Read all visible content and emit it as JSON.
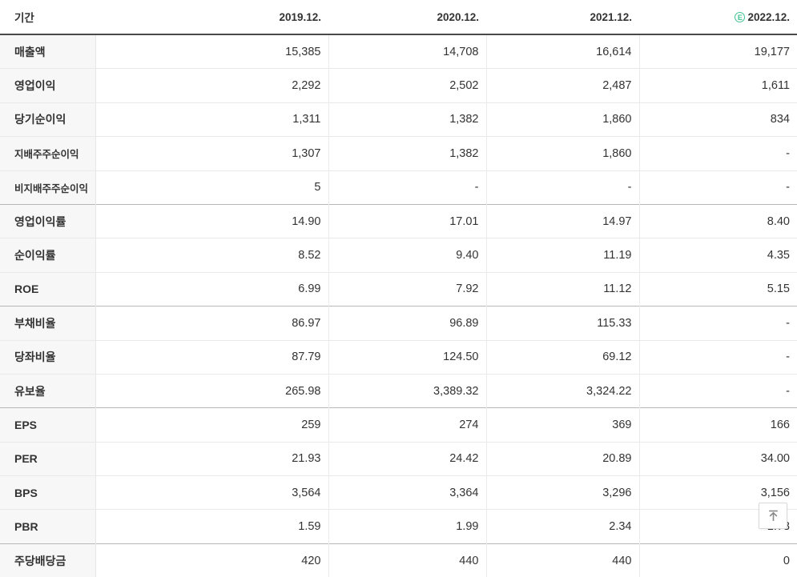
{
  "colors": {
    "estimate_green": "#41c392",
    "header_border": "#4a4a4a",
    "group_border": "#b7b7b7",
    "row_border": "#e9e9e9",
    "label_bg": "#f7f7f7",
    "text": "#333333"
  },
  "table": {
    "header": {
      "period_label": "기간",
      "estimate_badge": "E",
      "columns": [
        {
          "label": "2019.12.",
          "estimate": false
        },
        {
          "label": "2020.12.",
          "estimate": false
        },
        {
          "label": "2021.12.",
          "estimate": false
        },
        {
          "label": "2022.12.",
          "estimate": true
        }
      ]
    },
    "rows": [
      {
        "label": "매출액",
        "sub": false,
        "group_start": false,
        "values": [
          "15,385",
          "14,708",
          "16,614",
          "19,177"
        ]
      },
      {
        "label": "영업이익",
        "sub": false,
        "group_start": false,
        "values": [
          "2,292",
          "2,502",
          "2,487",
          "1,611"
        ]
      },
      {
        "label": "당기순이익",
        "sub": false,
        "group_start": false,
        "values": [
          "1,311",
          "1,382",
          "1,860",
          "834"
        ]
      },
      {
        "label": "지배주주순이익",
        "sub": true,
        "group_start": false,
        "values": [
          "1,307",
          "1,382",
          "1,860",
          "-"
        ]
      },
      {
        "label": "비지배주주순이익",
        "sub": true,
        "group_start": false,
        "values": [
          "5",
          "-",
          "-",
          "-"
        ]
      },
      {
        "label": "영업이익률",
        "sub": false,
        "group_start": true,
        "values": [
          "14.90",
          "17.01",
          "14.97",
          "8.40"
        ]
      },
      {
        "label": "순이익률",
        "sub": false,
        "group_start": false,
        "values": [
          "8.52",
          "9.40",
          "11.19",
          "4.35"
        ]
      },
      {
        "label": "ROE",
        "sub": false,
        "group_start": false,
        "values": [
          "6.99",
          "7.92",
          "11.12",
          "5.15"
        ]
      },
      {
        "label": "부채비율",
        "sub": false,
        "group_start": true,
        "values": [
          "86.97",
          "96.89",
          "115.33",
          "-"
        ]
      },
      {
        "label": "당좌비율",
        "sub": false,
        "group_start": false,
        "values": [
          "87.79",
          "124.50",
          "69.12",
          "-"
        ]
      },
      {
        "label": "유보율",
        "sub": false,
        "group_start": false,
        "values": [
          "265.98",
          "3,389.32",
          "3,324.22",
          "-"
        ]
      },
      {
        "label": "EPS",
        "sub": false,
        "group_start": true,
        "values": [
          "259",
          "274",
          "369",
          "166"
        ]
      },
      {
        "label": "PER",
        "sub": false,
        "group_start": false,
        "values": [
          "21.93",
          "24.42",
          "20.89",
          "34.00"
        ]
      },
      {
        "label": "BPS",
        "sub": false,
        "group_start": false,
        "values": [
          "3,564",
          "3,364",
          "3,296",
          "3,156"
        ]
      },
      {
        "label": "PBR",
        "sub": false,
        "group_start": false,
        "values": [
          "1.59",
          "1.99",
          "2.34",
          "1.78"
        ]
      },
      {
        "label": "주당배당금",
        "sub": false,
        "group_start": true,
        "values": [
          "420",
          "440",
          "440",
          "0"
        ]
      }
    ]
  },
  "scroll_top_button": {
    "icon": "arrow-to-top"
  }
}
